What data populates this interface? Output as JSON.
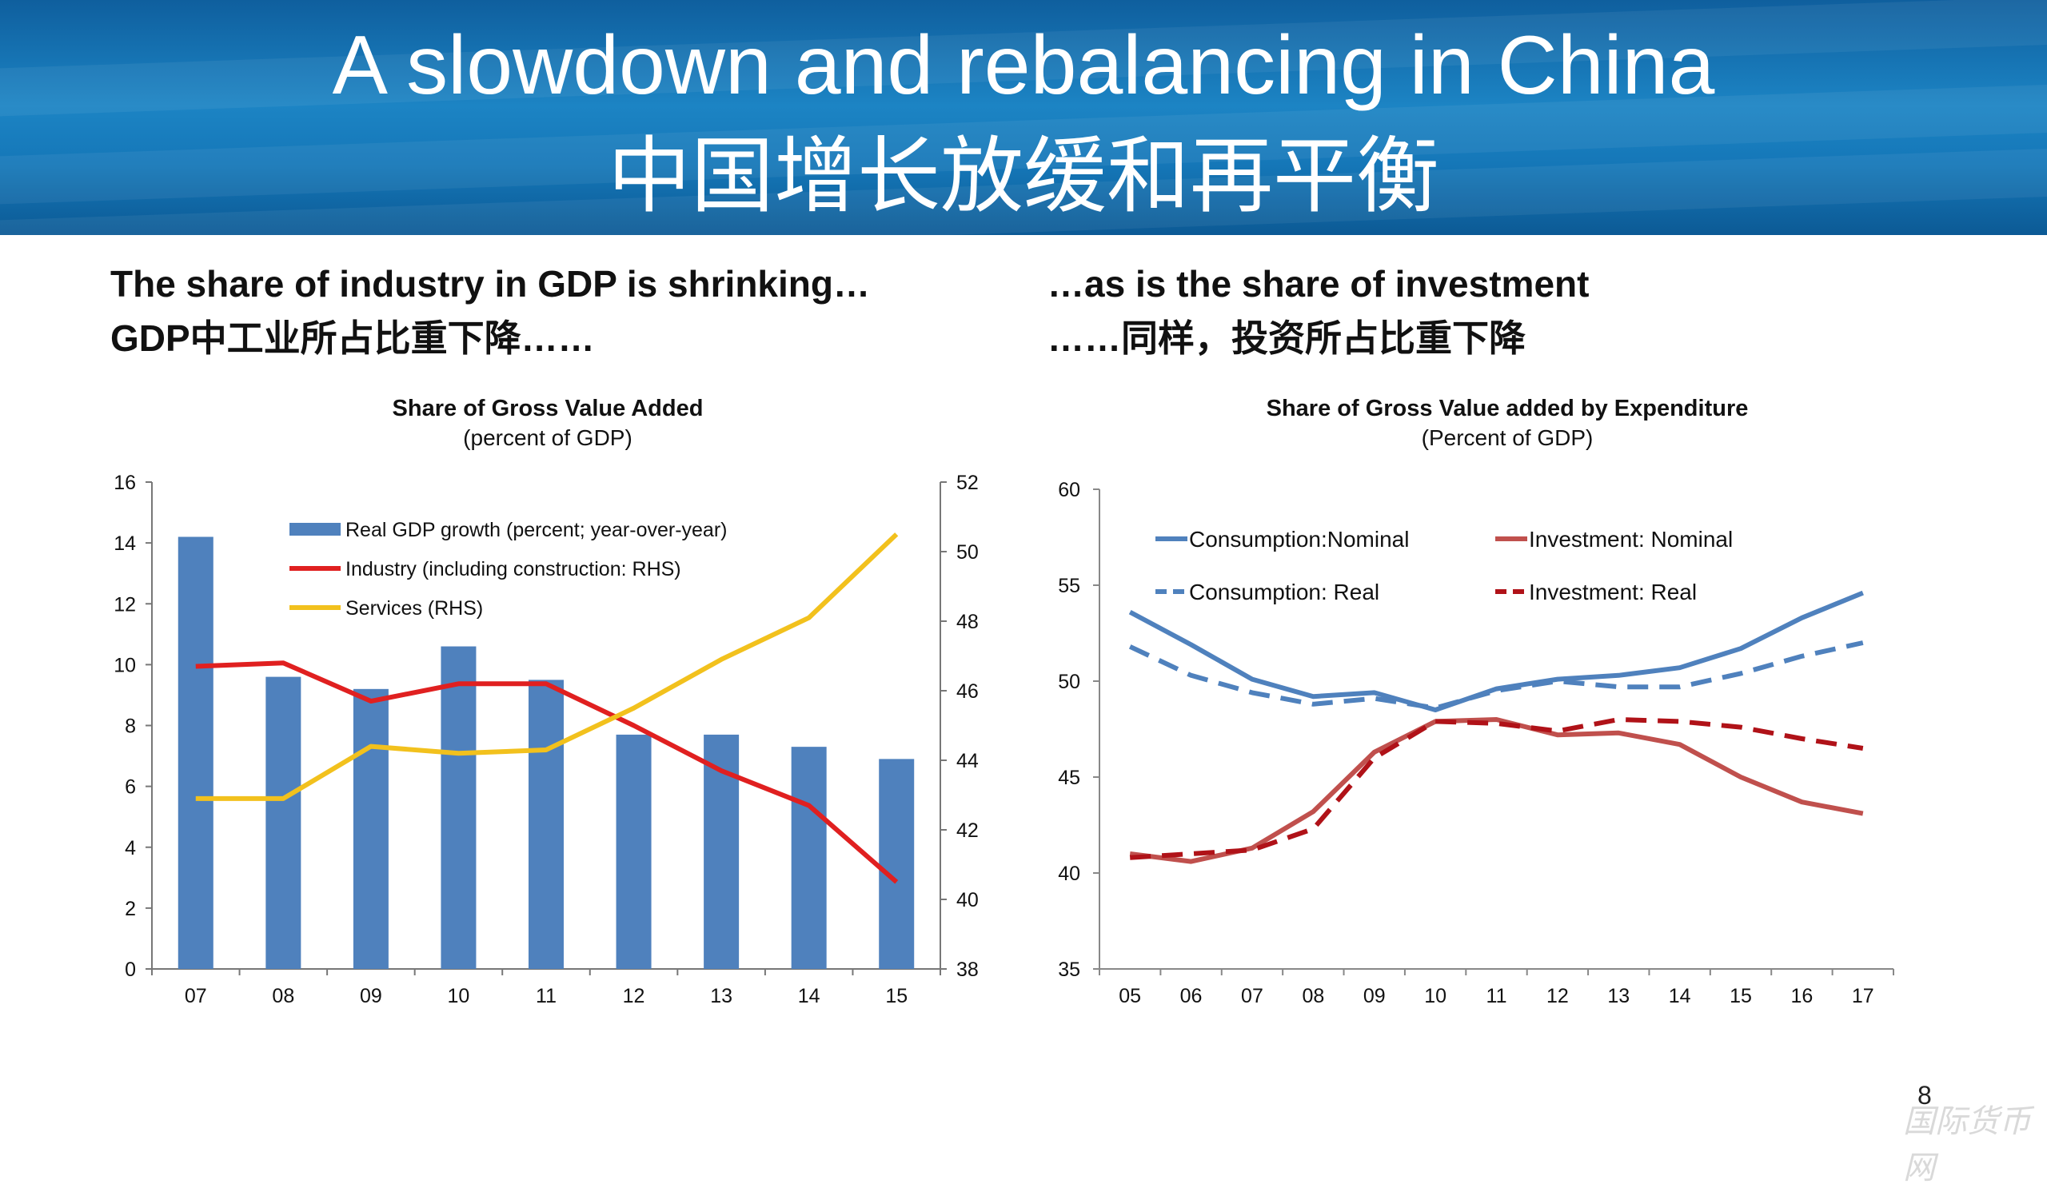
{
  "slide": {
    "title_en": "A slowdown and rebalancing in China",
    "title_zh": "中国增长放缓和再平衡",
    "left_heading_en": "The share of industry in GDP is shrinking…",
    "left_heading_zh": "GDP中工业所占比重下降……",
    "right_heading_en": "…as is the share of investment",
    "right_heading_zh": "……同样，投资所占比重下降",
    "page_number": "8",
    "watermark": "国际货币网"
  },
  "chart_data": [
    {
      "type": "bar+line",
      "title": "Share of Gross Value Added",
      "subtitle": "(percent of GDP)",
      "categories": [
        "07",
        "08",
        "09",
        "10",
        "11",
        "12",
        "13",
        "14",
        "15"
      ],
      "y_left": {
        "ticks": [
          "0",
          "2",
          "4",
          "6",
          "8",
          "10",
          "12",
          "14",
          "16"
        ],
        "min": 0,
        "max": 16
      },
      "y_right": {
        "ticks": [
          "38",
          "40",
          "42",
          "44",
          "46",
          "48",
          "50",
          "52"
        ],
        "min": 38,
        "max": 52
      },
      "series": [
        {
          "name": "Real GDP growth (percent; year-over-year)",
          "kind": "bar",
          "axis": "left",
          "color": "#4f81bd",
          "values": [
            14.2,
            9.6,
            9.2,
            10.6,
            9.5,
            7.7,
            7.7,
            7.3,
            6.9
          ]
        },
        {
          "name": "Industry (including construction: RHS)",
          "kind": "line",
          "axis": "right",
          "color": "#e02020",
          "values": [
            46.7,
            46.8,
            45.7,
            46.2,
            46.2,
            45.0,
            43.7,
            42.7,
            40.5
          ]
        },
        {
          "name": "Services (RHS)",
          "kind": "line",
          "axis": "right",
          "color": "#f2c11d",
          "values": [
            42.9,
            42.9,
            44.4,
            44.2,
            44.3,
            45.5,
            46.9,
            48.1,
            50.5
          ]
        }
      ]
    },
    {
      "type": "line",
      "title": "Share of Gross Value added by Expenditure",
      "subtitle": "(Percent of GDP)",
      "categories": [
        "05",
        "06",
        "07",
        "08",
        "09",
        "10",
        "11",
        "12",
        "13",
        "14",
        "15",
        "16",
        "17"
      ],
      "y": {
        "ticks": [
          "35",
          "40",
          "45",
          "50",
          "55",
          "60"
        ],
        "min": 35,
        "max": 60
      },
      "series": [
        {
          "name": "Consumption:Nominal",
          "color": "#4f81bd",
          "dash": false,
          "values": [
            53.6,
            51.9,
            50.1,
            49.2,
            49.4,
            48.5,
            49.6,
            50.1,
            50.3,
            50.7,
            51.7,
            53.3,
            54.6
          ]
        },
        {
          "name": "Consumption: Real",
          "color": "#4f81bd",
          "dash": true,
          "values": [
            51.8,
            50.3,
            49.4,
            48.8,
            49.1,
            48.6,
            49.5,
            50.0,
            49.7,
            49.7,
            50.4,
            51.3,
            52.0
          ]
        },
        {
          "name": "Investment: Nominal",
          "color": "#c0504d",
          "dash": false,
          "values": [
            41.0,
            40.6,
            41.3,
            43.2,
            46.3,
            47.9,
            48.0,
            47.2,
            47.3,
            46.7,
            45.0,
            43.7,
            43.1
          ]
        },
        {
          "name": "Investment: Real",
          "color": "#b01218",
          "dash": true,
          "values": [
            40.8,
            41.0,
            41.2,
            42.3,
            46.0,
            47.9,
            47.8,
            47.4,
            48.0,
            47.9,
            47.6,
            47.0,
            46.5
          ]
        }
      ]
    }
  ]
}
